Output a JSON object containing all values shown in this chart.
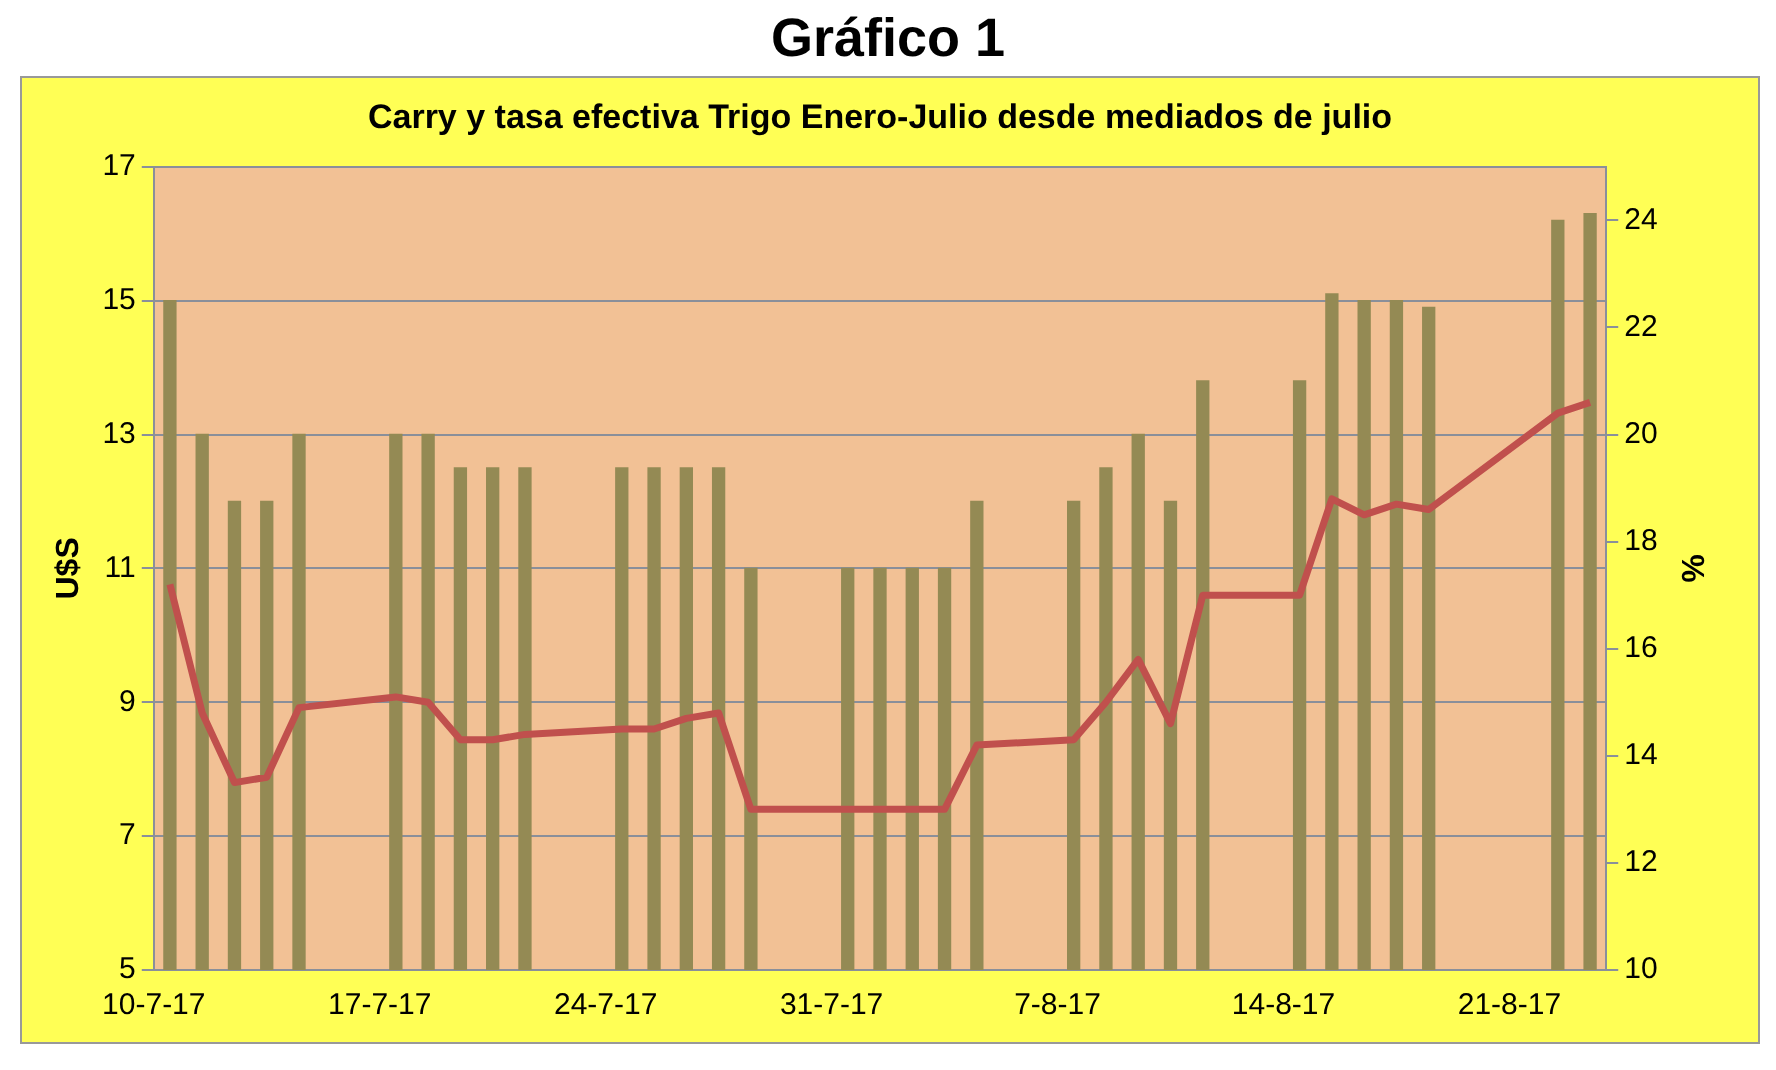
{
  "chart_data": {
    "type": "bar",
    "title": "Gráfico 1",
    "subtitle": "Carry y tasa efectiva Trigo Enero-Julio desde mediados de julio",
    "ylabel": "U$S",
    "y2label": "%",
    "xlim": [
      "--07-10",
      "--08-24"
    ],
    "xticks": [
      {
        "value": "--07-10",
        "label": "10-7-17"
      },
      {
        "value": "--07-17",
        "label": "17-7-17"
      },
      {
        "value": "--07-24",
        "label": "24-7-17"
      },
      {
        "value": "--07-31",
        "label": "31-7-17"
      },
      {
        "value": "--08-07",
        "label": "7-8-17"
      },
      {
        "value": "--08-14",
        "label": "14-8-17"
      },
      {
        "value": "--08-21",
        "label": "21-8-17"
      }
    ],
    "x": [
      "--07-10T12:00",
      "--07-11T12:00",
      "--07-12T12:00",
      "--07-13T12:00",
      "--07-14T12:00",
      "--07-17T12:00",
      "--07-18T12:00",
      "--07-19T12:00",
      "--07-20T12:00",
      "--07-21T12:00",
      "--07-24T12:00",
      "--07-25T12:00",
      "--07-26T12:00",
      "--07-27T12:00",
      "--07-28T12:00",
      "--07-31T12:00",
      "--08-01T12:00",
      "--08-02T12:00",
      "--08-03T12:00",
      "--08-04T12:00",
      "--08-07T12:00",
      "--08-08T12:00",
      "--08-09T12:00",
      "--08-10T12:00",
      "--08-11T12:00",
      "--08-14T12:00",
      "--08-15T12:00",
      "--08-16T12:00",
      "--08-17T12:00",
      "--08-18T12:00",
      "--08-22T12:00",
      "--08-23T12:00"
    ],
    "series": [
      {
        "color": "#948a54",
        "values": [
          15,
          13,
          12,
          12,
          13,
          13,
          13,
          12.5,
          12.5,
          12.5,
          12.5,
          12.5,
          12.5,
          12.5,
          11,
          11,
          11,
          11,
          11,
          12,
          12,
          12.5,
          13,
          12,
          13.8,
          13.8,
          15.1,
          15,
          15,
          14.9,
          16.2,
          16.3
        ]
      },
      {
        "type": "line",
        "axis": "y2",
        "color": "#c0504d",
        "values": [
          17.2,
          14.8,
          13.5,
          13.6,
          14.9,
          15.1,
          15.0,
          14.3,
          14.3,
          14.4,
          14.5,
          14.5,
          14.7,
          14.8,
          13.0,
          13.0,
          13.0,
          13.0,
          13.0,
          14.2,
          14.3,
          15.0,
          15.8,
          14.6,
          17.0,
          17.0,
          18.8,
          18.5,
          18.7,
          18.6,
          20.4,
          20.6
        ]
      }
    ],
    "ylim": [
      5,
      17
    ],
    "yticks": [
      5,
      7,
      9,
      11,
      13,
      15,
      17
    ],
    "y2lim": [
      10,
      25
    ],
    "y2ticks": [
      10,
      12,
      14,
      16,
      18,
      20,
      22,
      24
    ],
    "grid": "y",
    "legend": false,
    "marker": "none",
    "line_style": "solid"
  }
}
